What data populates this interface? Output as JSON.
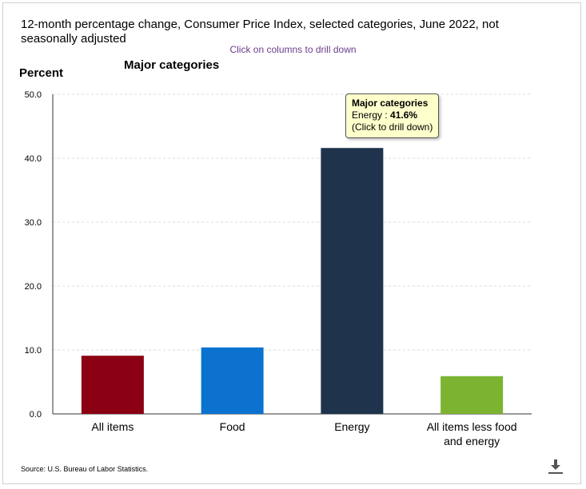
{
  "title": "12-month percentage change, Consumer Price Index, selected categories, June 2022, not seasonally adjusted",
  "drill_hint": "Click on columns to drill down",
  "subtitle": "Major categories",
  "y_axis_title": "Percent",
  "source": "Source: U.S. Bureau of Labor Statistics.",
  "download_icon": "download-icon",
  "tooltip": {
    "title": "Major categories",
    "label": "Energy : ",
    "value": "41.6%",
    "note": "(Click to drill down)"
  },
  "chart_data": {
    "type": "bar",
    "title": "12-month percentage change, Consumer Price Index, selected categories, June 2022, not seasonally adjusted",
    "subtitle": "Major categories",
    "ylabel": "Percent",
    "xlabel": "",
    "ylim": [
      0,
      50
    ],
    "y_ticks": [
      "0.0",
      "10.0",
      "20.0",
      "30.0",
      "40.0",
      "50.0"
    ],
    "grid": true,
    "categories": [
      "All items",
      "Food",
      "Energy",
      "All items less food and energy"
    ],
    "category_lines": [
      [
        "All items"
      ],
      [
        "Food"
      ],
      [
        "Energy"
      ],
      [
        "All items less food",
        "and energy"
      ]
    ],
    "values": [
      9.1,
      10.4,
      41.6,
      5.9
    ],
    "colors": [
      "#8b0012",
      "#0b73cf",
      "#1f344c",
      "#7cb431"
    ]
  }
}
